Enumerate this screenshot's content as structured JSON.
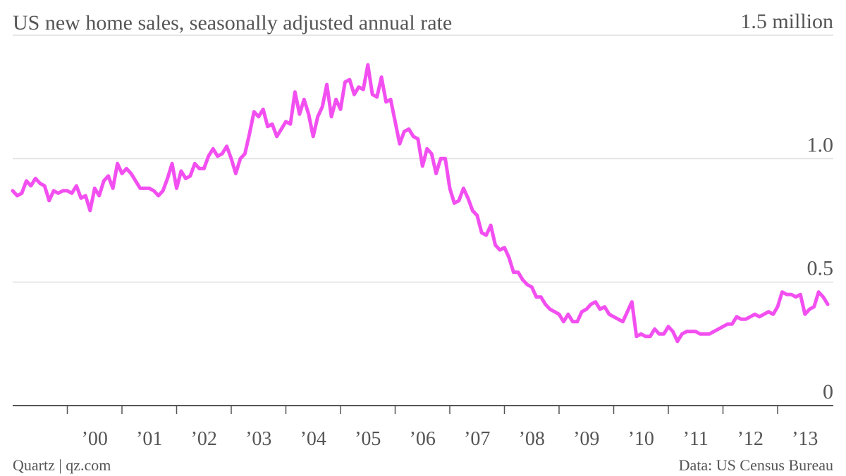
{
  "chart_data": {
    "type": "line",
    "title": "US new home sales, seasonally adjusted annual rate",
    "credit": "Quartz | qz.com",
    "source": "Data: US Census Bureau",
    "x": [
      1999,
      1999.083,
      1999.167,
      1999.25,
      1999.333,
      1999.417,
      1999.5,
      1999.583,
      1999.667,
      1999.75,
      1999.833,
      1999.917,
      2000,
      2000.083,
      2000.167,
      2000.25,
      2000.333,
      2000.417,
      2000.5,
      2000.583,
      2000.667,
      2000.75,
      2000.833,
      2000.917,
      2001,
      2001.083,
      2001.167,
      2001.25,
      2001.333,
      2001.417,
      2001.5,
      2001.583,
      2001.667,
      2001.75,
      2001.833,
      2001.917,
      2002,
      2002.083,
      2002.167,
      2002.25,
      2002.333,
      2002.417,
      2002.5,
      2002.583,
      2002.667,
      2002.75,
      2002.833,
      2002.917,
      2003,
      2003.083,
      2003.167,
      2003.25,
      2003.333,
      2003.417,
      2003.5,
      2003.583,
      2003.667,
      2003.75,
      2003.833,
      2003.917,
      2004,
      2004.083,
      2004.167,
      2004.25,
      2004.333,
      2004.417,
      2004.5,
      2004.583,
      2004.667,
      2004.75,
      2004.833,
      2004.917,
      2005,
      2005.083,
      2005.167,
      2005.25,
      2005.333,
      2005.417,
      2005.5,
      2005.583,
      2005.667,
      2005.75,
      2005.833,
      2005.917,
      2006,
      2006.083,
      2006.167,
      2006.25,
      2006.333,
      2006.417,
      2006.5,
      2006.583,
      2006.667,
      2006.75,
      2006.833,
      2006.917,
      2007,
      2007.083,
      2007.167,
      2007.25,
      2007.333,
      2007.417,
      2007.5,
      2007.583,
      2007.667,
      2007.75,
      2007.833,
      2007.917,
      2008,
      2008.083,
      2008.167,
      2008.25,
      2008.333,
      2008.417,
      2008.5,
      2008.583,
      2008.667,
      2008.75,
      2008.833,
      2008.917,
      2009,
      2009.083,
      2009.167,
      2009.25,
      2009.333,
      2009.417,
      2009.5,
      2009.583,
      2009.667,
      2009.75,
      2009.833,
      2009.917,
      2010,
      2010.083,
      2010.167,
      2010.25,
      2010.333,
      2010.417,
      2010.5,
      2010.583,
      2010.667,
      2010.75,
      2010.833,
      2010.917,
      2011,
      2011.083,
      2011.167,
      2011.25,
      2011.333,
      2011.417,
      2011.5,
      2011.583,
      2011.667,
      2011.75,
      2011.833,
      2011.917,
      2012,
      2012.083,
      2012.167,
      2012.25,
      2012.333,
      2012.417,
      2012.5,
      2012.583,
      2012.667,
      2012.75,
      2012.833,
      2012.917,
      2013,
      2013.083,
      2013.167,
      2013.25,
      2013.333,
      2013.417,
      2013.5,
      2013.583,
      2013.667,
      2013.75,
      2013.833,
      2013.917
    ],
    "series": [
      {
        "name": "New home sales",
        "color": "#f24ff0",
        "values": [
          0.87,
          0.85,
          0.86,
          0.91,
          0.89,
          0.92,
          0.9,
          0.89,
          0.83,
          0.87,
          0.86,
          0.87,
          0.87,
          0.86,
          0.89,
          0.84,
          0.85,
          0.79,
          0.88,
          0.85,
          0.91,
          0.93,
          0.88,
          0.98,
          0.94,
          0.96,
          0.94,
          0.91,
          0.88,
          0.88,
          0.88,
          0.87,
          0.85,
          0.87,
          0.92,
          0.98,
          0.88,
          0.95,
          0.92,
          0.93,
          0.98,
          0.96,
          0.96,
          1.01,
          1.04,
          1.01,
          1.02,
          1.05,
          1.0,
          0.94,
          1.0,
          1.02,
          1.1,
          1.19,
          1.17,
          1.2,
          1.13,
          1.14,
          1.09,
          1.12,
          1.15,
          1.14,
          1.27,
          1.18,
          1.24,
          1.18,
          1.09,
          1.17,
          1.21,
          1.3,
          1.17,
          1.24,
          1.2,
          1.31,
          1.32,
          1.26,
          1.29,
          1.28,
          1.38,
          1.26,
          1.25,
          1.33,
          1.23,
          1.24,
          1.15,
          1.06,
          1.11,
          1.12,
          1.09,
          1.08,
          0.97,
          1.04,
          1.02,
          0.94,
          1.0,
          1.0,
          0.88,
          0.82,
          0.83,
          0.88,
          0.84,
          0.79,
          0.77,
          0.7,
          0.69,
          0.73,
          0.65,
          0.63,
          0.64,
          0.6,
          0.54,
          0.54,
          0.51,
          0.49,
          0.48,
          0.44,
          0.44,
          0.41,
          0.39,
          0.38,
          0.37,
          0.34,
          0.37,
          0.34,
          0.34,
          0.38,
          0.39,
          0.41,
          0.42,
          0.39,
          0.4,
          0.37,
          0.36,
          0.35,
          0.34,
          0.38,
          0.42,
          0.28,
          0.29,
          0.28,
          0.28,
          0.31,
          0.29,
          0.29,
          0.32,
          0.3,
          0.26,
          0.29,
          0.3,
          0.3,
          0.3,
          0.29,
          0.29,
          0.29,
          0.3,
          0.31,
          0.32,
          0.33,
          0.33,
          0.36,
          0.35,
          0.35,
          0.36,
          0.37,
          0.36,
          0.37,
          0.38,
          0.37,
          0.4,
          0.46,
          0.45,
          0.45,
          0.44,
          0.45,
          0.37,
          0.39,
          0.4,
          0.46,
          0.44,
          0.41
        ]
      }
    ],
    "xlim": [
      1999,
      2014
    ],
    "xticks": [
      {
        "value": 2000,
        "label": "’00"
      },
      {
        "value": 2001,
        "label": "’01"
      },
      {
        "value": 2002,
        "label": "’02"
      },
      {
        "value": 2003,
        "label": "’03"
      },
      {
        "value": 2004,
        "label": "’04"
      },
      {
        "value": 2005,
        "label": "’05"
      },
      {
        "value": 2006,
        "label": "’06"
      },
      {
        "value": 2007,
        "label": "’07"
      },
      {
        "value": 2008,
        "label": "’08"
      },
      {
        "value": 2009,
        "label": "’09"
      },
      {
        "value": 2010,
        "label": "’10"
      },
      {
        "value": 2011,
        "label": "’11"
      },
      {
        "value": 2012,
        "label": "’12"
      },
      {
        "value": 2013,
        "label": "’13"
      }
    ],
    "ylim": [
      0,
      1.5
    ],
    "yticks": [
      0,
      0.5,
      {
        "value": 1,
        "label": "1.0"
      },
      {
        "value": 1.5,
        "label": "1.5 million"
      }
    ],
    "grid": true
  }
}
